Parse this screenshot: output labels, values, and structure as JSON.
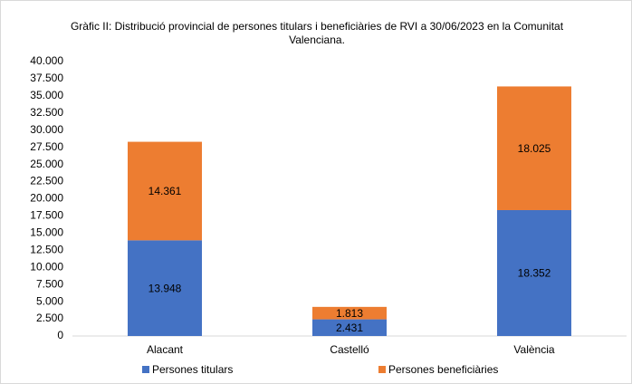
{
  "chart_data": {
    "type": "stacked_bar",
    "title": "Gràfic II: Distribució provincial de persones titulars i beneficiàries de RVI a 30/06/2023 en la Comunitat Valenciana.",
    "categories": [
      "Alacant",
      "Castelló",
      "València"
    ],
    "series": [
      {
        "name": "Persones titulars",
        "color": "#4472c4",
        "values": [
          13948,
          2431,
          18352
        ],
        "value_labels": [
          "13.948",
          "2.431",
          "18.352"
        ]
      },
      {
        "name": "Persones beneficiàries",
        "color": "#ed7d31",
        "values": [
          14361,
          1813,
          18025
        ],
        "value_labels": [
          "14.361",
          "1.813",
          "18.025"
        ]
      }
    ],
    "ylim": [
      0,
      40000
    ],
    "yticks": [
      0,
      {
        "value": 2500,
        "label": "2.500"
      },
      {
        "value": 5000,
        "label": "5.000"
      },
      {
        "value": 7500,
        "label": "7.500"
      },
      {
        "value": 10000,
        "label": "10.000"
      },
      {
        "value": 12500,
        "label": "12.500"
      },
      {
        "value": 15000,
        "label": "15.000"
      },
      {
        "value": 17500,
        "label": "17.500"
      },
      {
        "value": 20000,
        "label": "20.000"
      },
      {
        "value": 22500,
        "label": "22.500"
      },
      {
        "value": 25000,
        "label": "25.000"
      },
      {
        "value": 27500,
        "label": "27.500"
      },
      {
        "value": 30000,
        "label": "30.000"
      },
      {
        "value": 32500,
        "label": "32.500"
      },
      {
        "value": 35000,
        "label": "35.000"
      },
      {
        "value": 37500,
        "label": "37.500"
      },
      {
        "value": 40000,
        "label": "40.000"
      }
    ],
    "grid": false,
    "legend": "bottom"
  }
}
